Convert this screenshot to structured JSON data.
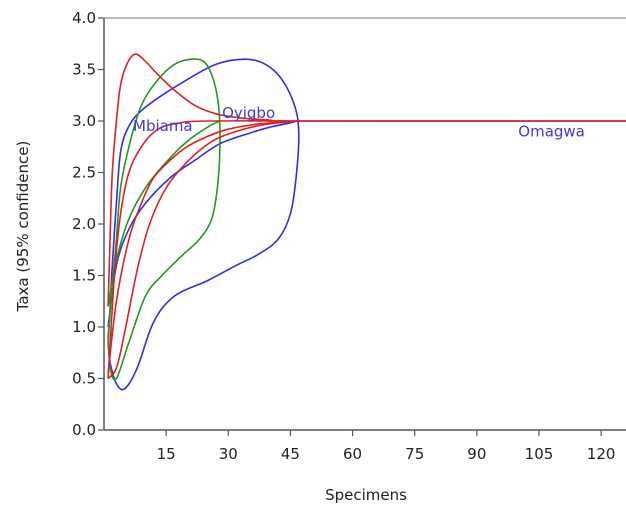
{
  "chart_data": {
    "type": "line",
    "title": "",
    "xlabel": "Specimens",
    "ylabel": "Taxa (95% confidence)",
    "xlim": [
      0,
      126
    ],
    "ylim": [
      0,
      4
    ],
    "x_ticks": [
      15,
      30,
      45,
      60,
      75,
      90,
      105,
      120
    ],
    "y_ticks": [
      0.0,
      0.5,
      1.0,
      1.5,
      2.0,
      2.5,
      3.0,
      3.5,
      4.0
    ],
    "grid": false,
    "legend": "none",
    "annotations": [
      {
        "label": "Mbiama",
        "x": 7,
        "y": 2.95,
        "color": "#3a3ae0"
      },
      {
        "label": "Oyigbo",
        "x": 28.5,
        "y": 3.08,
        "color": "#3a3ae0"
      },
      {
        "label": "Omagwa",
        "x": 100,
        "y": 2.9,
        "color": "#3a3ae0"
      }
    ],
    "series": [
      {
        "color": "#2f2fe6",
        "points": [
          [
            1,
            0.85
          ],
          [
            1.5,
            1.2
          ],
          [
            2,
            1.6
          ],
          [
            3,
            2.2
          ],
          [
            4,
            2.7
          ],
          [
            6,
            2.95
          ],
          [
            9,
            3.1
          ],
          [
            14,
            3.25
          ],
          [
            20,
            3.4
          ],
          [
            27,
            3.55
          ],
          [
            34,
            3.6
          ],
          [
            39,
            3.55
          ],
          [
            43,
            3.4
          ],
          [
            46,
            3.15
          ],
          [
            47,
            2.9
          ],
          [
            46.5,
            2.5
          ],
          [
            45,
            2.1
          ],
          [
            42,
            1.85
          ],
          [
            37,
            1.7
          ],
          [
            32,
            1.6
          ],
          [
            25,
            1.45
          ],
          [
            17,
            1.3
          ],
          [
            12,
            1.05
          ],
          [
            8,
            0.6
          ],
          [
            5,
            0.4
          ],
          [
            3,
            0.45
          ],
          [
            1.5,
            0.65
          ],
          [
            1,
            0.85
          ]
        ]
      },
      {
        "color": "#2f2fe6",
        "points": [
          [
            1,
            1.0
          ],
          [
            3,
            1.6
          ],
          [
            6,
            1.95
          ],
          [
            10,
            2.2
          ],
          [
            16,
            2.45
          ],
          [
            22,
            2.62
          ],
          [
            28,
            2.78
          ],
          [
            35,
            2.88
          ],
          [
            40,
            2.94
          ],
          [
            46,
            2.99
          ]
        ]
      },
      {
        "color": "#2f2fe6",
        "points": [
          [
            47,
            3.0
          ],
          [
            126,
            3.0
          ]
        ]
      },
      {
        "color": "#229922",
        "points": [
          [
            1,
            0.9
          ],
          [
            2,
            1.4
          ],
          [
            3,
            1.85
          ],
          [
            4,
            2.35
          ],
          [
            6,
            2.75
          ],
          [
            9,
            3.15
          ],
          [
            13,
            3.4
          ],
          [
            17,
            3.55
          ],
          [
            21,
            3.6
          ],
          [
            24,
            3.58
          ],
          [
            26,
            3.45
          ],
          [
            27.5,
            3.2
          ],
          [
            28,
            2.85
          ],
          [
            27.5,
            2.4
          ],
          [
            26,
            2.05
          ],
          [
            23,
            1.85
          ],
          [
            19,
            1.7
          ],
          [
            14,
            1.5
          ],
          [
            10,
            1.3
          ],
          [
            6,
            0.85
          ],
          [
            3,
            0.5
          ],
          [
            1.5,
            0.6
          ],
          [
            1,
            0.9
          ]
        ]
      },
      {
        "color": "#229922",
        "points": [
          [
            1,
            1.2
          ],
          [
            3,
            1.65
          ],
          [
            6,
            2.05
          ],
          [
            10,
            2.35
          ],
          [
            15,
            2.6
          ],
          [
            20,
            2.8
          ],
          [
            25,
            2.94
          ],
          [
            28,
            3.0
          ]
        ]
      },
      {
        "color": "#e02020",
        "points": [
          [
            1,
            1.2
          ],
          [
            1.5,
            1.9
          ],
          [
            2,
            2.5
          ],
          [
            3,
            3.0
          ],
          [
            4,
            3.35
          ],
          [
            5.5,
            3.55
          ],
          [
            7.5,
            3.65
          ],
          [
            10,
            3.58
          ],
          [
            13,
            3.45
          ],
          [
            17,
            3.3
          ],
          [
            22,
            3.15
          ],
          [
            27,
            3.07
          ],
          [
            33,
            3.03
          ],
          [
            40,
            3.01
          ],
          [
            47,
            3.0
          ],
          [
            126,
            3.0
          ]
        ]
      },
      {
        "color": "#e02020",
        "points": [
          [
            1,
            0.55
          ],
          [
            3,
            1.25
          ],
          [
            6,
            1.85
          ],
          [
            9,
            2.2
          ],
          [
            12,
            2.45
          ],
          [
            16,
            2.62
          ],
          [
            20,
            2.75
          ],
          [
            25,
            2.85
          ],
          [
            30,
            2.92
          ],
          [
            37,
            2.97
          ],
          [
            44,
            2.99
          ],
          [
            47,
            3.0
          ]
        ]
      },
      {
        "color": "#e02020",
        "points": [
          [
            1,
            0.5
          ],
          [
            3,
            0.6
          ],
          [
            5,
            0.95
          ],
          [
            8,
            1.55
          ],
          [
            11,
            2.0
          ],
          [
            15,
            2.35
          ],
          [
            20,
            2.6
          ],
          [
            26,
            2.8
          ],
          [
            32,
            2.9
          ],
          [
            38,
            2.96
          ],
          [
            44,
            2.99
          ],
          [
            47,
            3.0
          ]
        ]
      },
      {
        "color": "#e02020",
        "points": [
          [
            1,
            0.5
          ],
          [
            2.5,
            1.5
          ],
          [
            4,
            2.1
          ],
          [
            6,
            2.5
          ],
          [
            9,
            2.75
          ],
          [
            13,
            2.92
          ],
          [
            18,
            2.98
          ],
          [
            25,
            3.0
          ],
          [
            47,
            3.0
          ]
        ]
      }
    ]
  }
}
